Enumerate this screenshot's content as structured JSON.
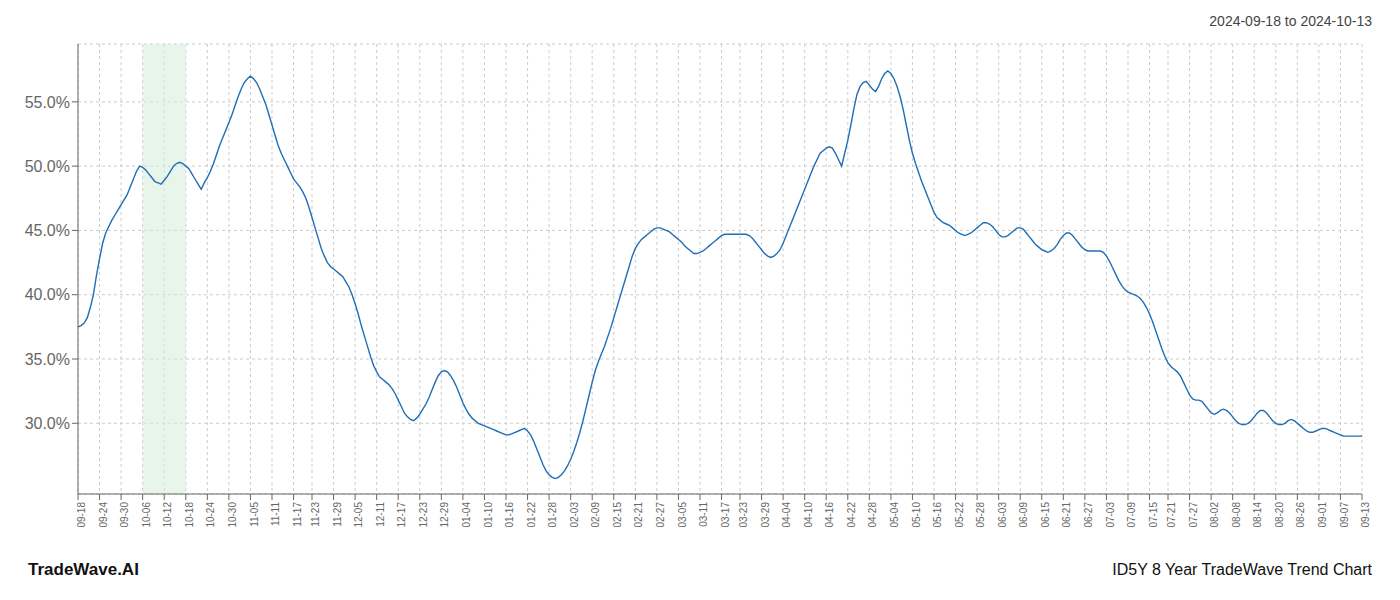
{
  "chart_data": {
    "type": "line",
    "title": "2024-09-18 to 2024-10-13",
    "annotations": [
      "TradeWave.AI",
      "ID5Y 8 Year TradeWave Trend Chart"
    ],
    "color": "#1f6eb5",
    "grid": true,
    "ylim": [
      0.245,
      0.595
    ],
    "yticks": [
      {
        "value": 0.3,
        "label": "30.0%"
      },
      {
        "value": 0.35,
        "label": "35.0%"
      },
      {
        "value": 0.4,
        "label": "40.0%"
      },
      {
        "value": 0.45,
        "label": "45.0%"
      },
      {
        "value": 0.5,
        "label": "50.0%"
      },
      {
        "value": 0.55,
        "label": "55.0%"
      }
    ],
    "highlight": {
      "from": "10-06",
      "to": "10-18",
      "color": "#d4edda"
    },
    "categories": [
      "09-18",
      null,
      null,
      null,
      null,
      null,
      null,
      "09-24",
      null,
      null,
      null,
      null,
      null,
      null,
      "09-30",
      null,
      null,
      null,
      null,
      null,
      null,
      "10-06",
      null,
      null,
      null,
      null,
      null,
      null,
      "10-12",
      null,
      null,
      null,
      null,
      null,
      null,
      "10-18",
      null,
      null,
      null,
      null,
      null,
      null,
      "10-24",
      null,
      null,
      null,
      null,
      null,
      null,
      "10-30",
      null,
      null,
      null,
      null,
      null,
      null,
      "11-05",
      null,
      null,
      null,
      null,
      null,
      null,
      "11-11",
      null,
      null,
      null,
      null,
      null,
      null,
      "11-17",
      null,
      null,
      null,
      null,
      null,
      "11-23",
      null,
      null,
      null,
      null,
      null,
      null,
      "11-29",
      null,
      null,
      null,
      null,
      null,
      null,
      "12-05",
      null,
      null,
      null,
      null,
      null,
      null,
      "12-11",
      null,
      null,
      null,
      null,
      null,
      null,
      "12-17",
      null,
      null,
      null,
      null,
      null,
      null,
      "12-23",
      null,
      null,
      null,
      null,
      null,
      null,
      "12-29",
      null,
      null,
      null,
      null,
      null,
      null,
      "01-04",
      null,
      null,
      null,
      null,
      null,
      null,
      "01-10",
      null,
      null,
      null,
      null,
      null,
      null,
      "01-16",
      null,
      null,
      null,
      null,
      null,
      null,
      "01-22",
      null,
      null,
      null,
      null,
      null,
      null,
      "01-28",
      null,
      null,
      null,
      null,
      null,
      null,
      "02-03",
      null,
      null,
      null,
      null,
      null,
      null,
      "02-09",
      null,
      null,
      null,
      null,
      null,
      null,
      "02-15",
      null,
      null,
      null,
      null,
      null,
      null,
      "02-21",
      null,
      null,
      null,
      null,
      null,
      null,
      "02-27",
      null,
      null,
      null,
      null,
      null,
      null,
      "03-05",
      null,
      null,
      null,
      null,
      null,
      null,
      "03-11",
      null,
      null,
      null,
      null,
      null,
      null,
      "03-17",
      null,
      null,
      null,
      null,
      null,
      "03-23",
      null,
      null,
      null,
      null,
      null,
      null,
      "03-29",
      null,
      null,
      null,
      null,
      null,
      null,
      "04-04",
      null,
      null,
      null,
      null,
      null,
      null,
      "04-10",
      null,
      null,
      null,
      null,
      null,
      null,
      "04-16",
      null,
      null,
      null,
      null,
      null,
      null,
      "04-22",
      null,
      null,
      null,
      null,
      null,
      null,
      "04-28",
      null,
      null,
      null,
      null,
      null,
      null,
      "05-04",
      null,
      null,
      null,
      null,
      null,
      null,
      "05-10",
      null,
      null,
      null,
      null,
      null,
      null,
      "05-16",
      null,
      null,
      null,
      null,
      null,
      null,
      "05-22",
      null,
      null,
      null,
      null,
      null,
      null,
      "05-28",
      null,
      null,
      null,
      null,
      null,
      null,
      "06-03",
      null,
      null,
      null,
      null,
      null,
      null,
      "06-09",
      null,
      null,
      null,
      null,
      null,
      null,
      "06-15",
      null,
      null,
      null,
      null,
      null,
      null,
      "06-21",
      null,
      null,
      null,
      null,
      null,
      null,
      "06-27",
      null,
      null,
      null,
      null,
      null,
      null,
      "07-03",
      null,
      null,
      null,
      null,
      null,
      null,
      "07-09",
      null,
      null,
      null,
      null,
      null,
      null,
      "07-15",
      null,
      null,
      null,
      null,
      null,
      "07-21",
      null,
      null,
      null,
      null,
      null,
      null,
      "07-27",
      null,
      null,
      null,
      null,
      null,
      null,
      "08-02",
      null,
      null,
      null,
      null,
      null,
      null,
      "08-08",
      null,
      null,
      null,
      null,
      null,
      null,
      "08-14",
      null,
      null,
      null,
      null,
      null,
      null,
      "08-20",
      null,
      null,
      null,
      null,
      null,
      null,
      "08-26",
      null,
      null,
      null,
      null,
      null,
      null,
      "09-01",
      null,
      null,
      null,
      null,
      null,
      null,
      "09-07",
      null,
      null,
      null,
      null,
      null,
      null,
      "09-13"
    ],
    "values": [
      0.375,
      0.376,
      0.378,
      0.382,
      0.39,
      0.4,
      0.415,
      0.428,
      0.44,
      0.448,
      0.453,
      0.458,
      0.462,
      0.466,
      0.47,
      0.474,
      0.478,
      0.484,
      0.49,
      0.496,
      0.5,
      0.499,
      0.497,
      0.494,
      0.491,
      0.488,
      0.487,
      0.486,
      0.489,
      0.492,
      0.496,
      0.5,
      0.502,
      0.503,
      0.502,
      0.5,
      0.498,
      0.494,
      0.49,
      0.486,
      0.482,
      0.487,
      0.491,
      0.496,
      0.502,
      0.509,
      0.516,
      0.522,
      0.528,
      0.534,
      0.54,
      0.547,
      0.554,
      0.56,
      0.565,
      0.568,
      0.57,
      0.568,
      0.565,
      0.56,
      0.554,
      0.548,
      0.54,
      0.532,
      0.524,
      0.516,
      0.51,
      0.505,
      0.5,
      0.495,
      0.49,
      0.487,
      0.484,
      0.48,
      0.475,
      0.468,
      0.46,
      0.452,
      0.444,
      0.436,
      0.43,
      0.425,
      0.422,
      0.42,
      0.418,
      0.416,
      0.414,
      0.41,
      0.406,
      0.4,
      0.393,
      0.385,
      0.376,
      0.368,
      0.36,
      0.352,
      0.345,
      0.34,
      0.336,
      0.334,
      0.332,
      0.33,
      0.327,
      0.323,
      0.318,
      0.313,
      0.308,
      0.305,
      0.303,
      0.302,
      0.304,
      0.307,
      0.311,
      0.315,
      0.32,
      0.326,
      0.332,
      0.337,
      0.34,
      0.341,
      0.34,
      0.337,
      0.333,
      0.328,
      0.322,
      0.316,
      0.311,
      0.307,
      0.304,
      0.302,
      0.3,
      0.299,
      0.298,
      0.297,
      0.296,
      0.295,
      0.294,
      0.293,
      0.292,
      0.291,
      0.291,
      0.292,
      0.293,
      0.294,
      0.295,
      0.296,
      0.294,
      0.291,
      0.286,
      0.28,
      0.274,
      0.268,
      0.263,
      0.26,
      0.258,
      0.257,
      0.258,
      0.26,
      0.263,
      0.267,
      0.272,
      0.278,
      0.285,
      0.293,
      0.302,
      0.312,
      0.322,
      0.332,
      0.341,
      0.348,
      0.354,
      0.36,
      0.367,
      0.374,
      0.382,
      0.39,
      0.398,
      0.406,
      0.414,
      0.422,
      0.43,
      0.436,
      0.44,
      0.443,
      0.445,
      0.447,
      0.449,
      0.451,
      0.452,
      0.452,
      0.451,
      0.45,
      0.449,
      0.447,
      0.445,
      0.443,
      0.441,
      0.438,
      0.436,
      0.434,
      0.432,
      0.432,
      0.433,
      0.434,
      0.436,
      0.438,
      0.44,
      0.442,
      0.444,
      0.446,
      0.447,
      0.447,
      0.447,
      0.447,
      0.447,
      0.447,
      0.447,
      0.447,
      0.446,
      0.444,
      0.441,
      0.438,
      0.435,
      0.432,
      0.43,
      0.429,
      0.43,
      0.432,
      0.435,
      0.44,
      0.446,
      0.452,
      0.458,
      0.464,
      0.47,
      0.476,
      0.482,
      0.488,
      0.494,
      0.5,
      0.505,
      0.51,
      0.512,
      0.514,
      0.515,
      0.514,
      0.51,
      0.505,
      0.5,
      0.51,
      0.52,
      0.532,
      0.545,
      0.556,
      0.562,
      0.565,
      0.566,
      0.563,
      0.56,
      0.558,
      0.562,
      0.568,
      0.572,
      0.574,
      0.572,
      0.568,
      0.562,
      0.554,
      0.544,
      0.532,
      0.52,
      0.51,
      0.502,
      0.495,
      0.488,
      0.482,
      0.476,
      0.47,
      0.464,
      0.46,
      0.458,
      0.456,
      0.455,
      0.454,
      0.452,
      0.45,
      0.448,
      0.447,
      0.446,
      0.447,
      0.448,
      0.45,
      0.452,
      0.454,
      0.456,
      0.456,
      0.455,
      0.453,
      0.45,
      0.447,
      0.445,
      0.445,
      0.446,
      0.448,
      0.45,
      0.452,
      0.452,
      0.451,
      0.448,
      0.445,
      0.442,
      0.439,
      0.437,
      0.435,
      0.434,
      0.433,
      0.434,
      0.436,
      0.439,
      0.443,
      0.446,
      0.448,
      0.448,
      0.446,
      0.443,
      0.44,
      0.437,
      0.435,
      0.434,
      0.434,
      0.434,
      0.434,
      0.434,
      0.433,
      0.43,
      0.426,
      0.421,
      0.416,
      0.411,
      0.407,
      0.404,
      0.402,
      0.401,
      0.4,
      0.399,
      0.397,
      0.394,
      0.39,
      0.385,
      0.379,
      0.372,
      0.365,
      0.358,
      0.352,
      0.347,
      0.344,
      0.342,
      0.34,
      0.337,
      0.332,
      0.327,
      0.322,
      0.319,
      0.318,
      0.318,
      0.317,
      0.314,
      0.311,
      0.308,
      0.307,
      0.308,
      0.31,
      0.311,
      0.31,
      0.308,
      0.305,
      0.302,
      0.3,
      0.299,
      0.299,
      0.3,
      0.302,
      0.305,
      0.308,
      0.31,
      0.31,
      0.308,
      0.305,
      0.302,
      0.3,
      0.299,
      0.299,
      0.3,
      0.302,
      0.303,
      0.302,
      0.3,
      0.298,
      0.296,
      0.294,
      0.293,
      0.293,
      0.294,
      0.295,
      0.296,
      0.296,
      0.295,
      0.294,
      0.293,
      0.292,
      0.291,
      0.29,
      0.29,
      0.29,
      0.29,
      0.29,
      0.29,
      0.29
    ]
  }
}
